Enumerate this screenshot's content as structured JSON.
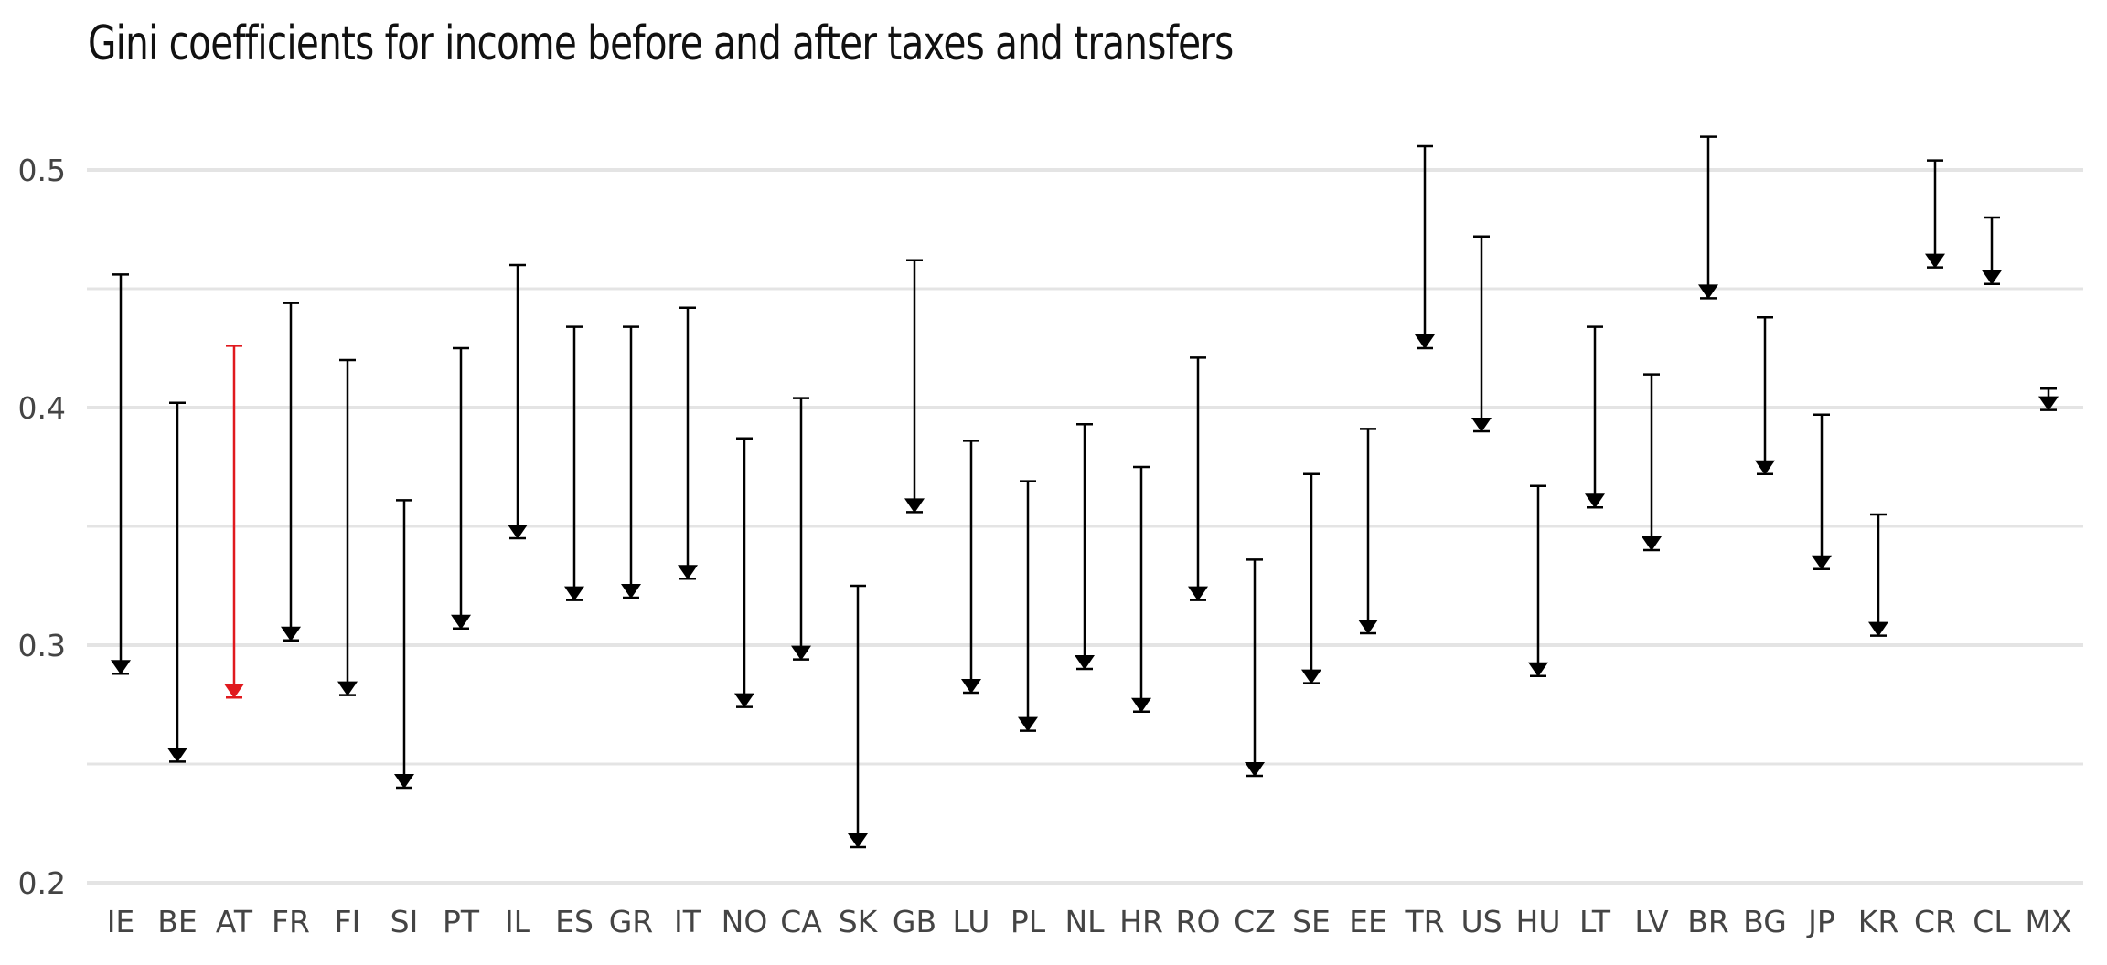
{
  "chart_data": {
    "type": "dumbbell",
    "title": "Gini coefficients for income before and after taxes and transfers",
    "xlabel": "",
    "ylabel": "",
    "ylim": [
      0.2,
      0.52
    ],
    "yticks": [
      "0.2",
      "0.3",
      "0.4",
      "0.5"
    ],
    "grid": true,
    "colors": {
      "default": "#000000",
      "highlight": "#e0191e",
      "grid": "#e4e4e4"
    },
    "categories": [
      "IE",
      "BE",
      "AT",
      "FR",
      "FI",
      "SI",
      "PT",
      "IL",
      "ES",
      "GR",
      "IT",
      "NO",
      "CA",
      "SK",
      "GB",
      "LU",
      "PL",
      "NL",
      "HR",
      "RO",
      "CZ",
      "SE",
      "EE",
      "TR",
      "US",
      "HU",
      "LT",
      "LV",
      "BR",
      "BG",
      "JP",
      "KR",
      "CR",
      "CL",
      "MX"
    ],
    "before": [
      0.456,
      0.402,
      0.426,
      0.444,
      0.42,
      0.361,
      0.425,
      0.46,
      0.434,
      0.434,
      0.442,
      0.387,
      0.404,
      0.325,
      0.462,
      0.386,
      0.369,
      0.393,
      0.375,
      0.421,
      0.336,
      0.372,
      0.391,
      0.51,
      0.472,
      0.367,
      0.434,
      0.414,
      0.514,
      0.438,
      0.397,
      0.355,
      0.504,
      0.48,
      0.408
    ],
    "after": [
      0.288,
      0.251,
      0.278,
      0.302,
      0.279,
      0.24,
      0.307,
      0.345,
      0.319,
      0.32,
      0.328,
      0.274,
      0.294,
      0.215,
      0.356,
      0.28,
      0.264,
      0.29,
      0.272,
      0.319,
      0.245,
      0.284,
      0.305,
      0.425,
      0.39,
      0.287,
      0.358,
      0.34,
      0.446,
      0.372,
      0.332,
      0.304,
      0.459,
      0.452,
      0.399
    ],
    "highlight": [
      "AT"
    ]
  }
}
